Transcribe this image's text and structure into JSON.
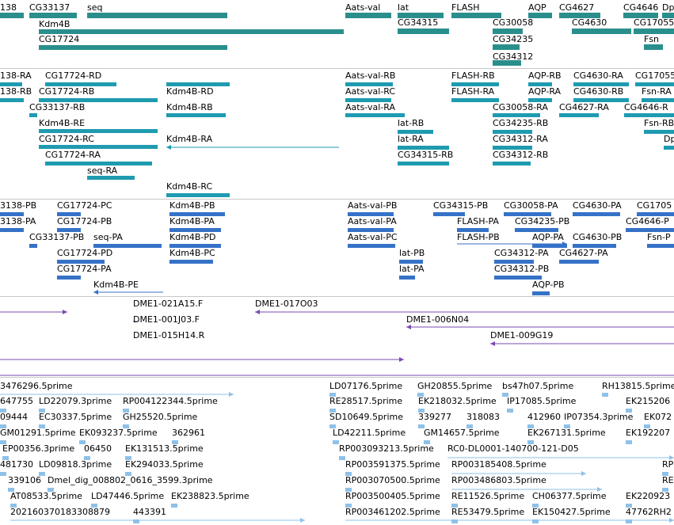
{
  "colors": {
    "gene": "#2a8f8c",
    "transcript_rna": "#1e9bb0",
    "transcript_protein": "#3572c8",
    "clone": "#7a4bb2",
    "est": "#8ec1e8",
    "separator": "#c8c8c8"
  },
  "tracks": {
    "genes": [
      {
        "name": "138"
      },
      {
        "name": "CG33137"
      },
      {
        "name": "seq"
      },
      {
        "name": "Kdm4B"
      },
      {
        "name": "CG17724"
      },
      {
        "name": "Aats-val"
      },
      {
        "name": "lat"
      },
      {
        "name": "FLASH"
      },
      {
        "name": "AQP"
      },
      {
        "name": "CG4627"
      },
      {
        "name": "CG4646"
      },
      {
        "name": "Dp"
      },
      {
        "name": "CG34315"
      },
      {
        "name": "CG30058"
      },
      {
        "name": "CG4630"
      },
      {
        "name": "CG17055"
      },
      {
        "name": "CG34235"
      },
      {
        "name": "Fsn"
      },
      {
        "name": "CG34312"
      }
    ],
    "transcripts": [
      {
        "name": "138-RA"
      },
      {
        "name": "CG17724-RD"
      },
      {
        "name": "138-RB"
      },
      {
        "name": "CG17724-RB"
      },
      {
        "name": "Kdm4B-RD"
      },
      {
        "name": "CG33137-RB"
      },
      {
        "name": "Kdm4B-RB"
      },
      {
        "name": "Kdm4B-RE"
      },
      {
        "name": "CG17724-RC"
      },
      {
        "name": "Kdm4B-RA"
      },
      {
        "name": "CG17724-RA"
      },
      {
        "name": "seq-RA"
      },
      {
        "name": "Kdm4B-RC"
      },
      {
        "name": "Aats-val-RB"
      },
      {
        "name": "Aats-val-RC"
      },
      {
        "name": "Aats-val-RA"
      },
      {
        "name": "lat-RB"
      },
      {
        "name": "lat-RA"
      },
      {
        "name": "CG34315-RB"
      },
      {
        "name": "FLASH-RB"
      },
      {
        "name": "FLASH-RA"
      },
      {
        "name": "CG30058-RA"
      },
      {
        "name": "CG34235-RB"
      },
      {
        "name": "CG34312-RA"
      },
      {
        "name": "CG34312-RB"
      },
      {
        "name": "AQP-RB"
      },
      {
        "name": "AQP-RA"
      },
      {
        "name": "CG4630-RA"
      },
      {
        "name": "CG4630-RB"
      },
      {
        "name": "CG4627-RA"
      },
      {
        "name": "CG17055"
      },
      {
        "name": "Fsn-RA"
      },
      {
        "name": "CG4646-R"
      },
      {
        "name": "Fsn-RB"
      },
      {
        "name": "Dp"
      }
    ],
    "proteins": [
      {
        "name": "3138-PB"
      },
      {
        "name": "CG17724-PC"
      },
      {
        "name": "Kdm4B-PB"
      },
      {
        "name": "3138-PA"
      },
      {
        "name": "CG17724-PB"
      },
      {
        "name": "Kdm4B-PA"
      },
      {
        "name": "CG33137-PB"
      },
      {
        "name": "seq-PA"
      },
      {
        "name": "Kdm4B-PD"
      },
      {
        "name": "CG17724-PD"
      },
      {
        "name": "Kdm4B-PC"
      },
      {
        "name": "CG17724-PA"
      },
      {
        "name": "Kdm4B-PE"
      },
      {
        "name": "Aats-val-PB"
      },
      {
        "name": "Aats-val-PA"
      },
      {
        "name": "Aats-val-PC"
      },
      {
        "name": "lat-PB"
      },
      {
        "name": "lat-PA"
      },
      {
        "name": "CG34315-PB"
      },
      {
        "name": "CG30058-PA"
      },
      {
        "name": "CG4630-PA"
      },
      {
        "name": "CG1705"
      },
      {
        "name": "FLASH-PA"
      },
      {
        "name": "CG34235-PB"
      },
      {
        "name": "CG4646-P"
      },
      {
        "name": "FLASH-PB"
      },
      {
        "name": "AQP-PA"
      },
      {
        "name": "CG4630-PB"
      },
      {
        "name": "Fsn-P"
      },
      {
        "name": "CG34312-PA"
      },
      {
        "name": "CG4627-PA"
      },
      {
        "name": "CG34312-PB"
      },
      {
        "name": "AQP-PB"
      }
    ],
    "clones": [
      {
        "name": "DME1-021A15.F"
      },
      {
        "name": "DME1-017O03"
      },
      {
        "name": "DME1-001J03.F"
      },
      {
        "name": "DME1-006N04"
      },
      {
        "name": "DME1-015H14.R"
      },
      {
        "name": "DME1-009G19"
      }
    ],
    "ests": [
      {
        "name": "3476296.5prime"
      },
      {
        "name": "LD07176.5prime"
      },
      {
        "name": "GH20855.5prime"
      },
      {
        "name": "bs47h07.5prime"
      },
      {
        "name": "RH13815.5prime"
      },
      {
        "name": "647755"
      },
      {
        "name": "LD22079.3prime"
      },
      {
        "name": "RP004122344.5prime"
      },
      {
        "name": "RE28517.5prime"
      },
      {
        "name": "EK218032.5prime"
      },
      {
        "name": "IP17085.5prime"
      },
      {
        "name": "EK215206"
      },
      {
        "name": "09444"
      },
      {
        "name": "EC30337.5prime"
      },
      {
        "name": "GH25520.5prime"
      },
      {
        "name": "SD10649.5prime"
      },
      {
        "name": "339277"
      },
      {
        "name": "318083"
      },
      {
        "name": "412960"
      },
      {
        "name": "IP07354.3prime"
      },
      {
        "name": "EK072"
      },
      {
        "name": "GM01291.5prime"
      },
      {
        "name": "EK093237.5prime"
      },
      {
        "name": "362961"
      },
      {
        "name": "LD42211.5prime"
      },
      {
        "name": "GM14657.5prime"
      },
      {
        "name": "EK267131.5prime"
      },
      {
        "name": "EK192207"
      },
      {
        "name": "EP00356.3prime"
      },
      {
        "name": "06450"
      },
      {
        "name": "EK131513.5prime"
      },
      {
        "name": "RP003093213.5prime"
      },
      {
        "name": "RC0-DL0001-140700-121-D05"
      },
      {
        "name": "481730"
      },
      {
        "name": "LD09818.3prime"
      },
      {
        "name": "EK294033.5prime"
      },
      {
        "name": "RP003591375.5prime"
      },
      {
        "name": "RP003185408.5prime"
      },
      {
        "name": "RP"
      },
      {
        "name": "339106"
      },
      {
        "name": "Dmel_dig_008802_0616_3599.3prime"
      },
      {
        "name": "RP003070500.5prime"
      },
      {
        "name": "RP003486803.5prime"
      },
      {
        "name": "RE"
      },
      {
        "name": "AT08533.5prime"
      },
      {
        "name": "LD47446.5prime"
      },
      {
        "name": "EK238823.5prime"
      },
      {
        "name": "RP003500405.5prime"
      },
      {
        "name": "RE11526.5prime"
      },
      {
        "name": "CH06377.5prime"
      },
      {
        "name": "EK220923"
      },
      {
        "name": "202160370183308879"
      },
      {
        "name": "443391"
      },
      {
        "name": "RP003461202.5prime"
      },
      {
        "name": "RE53479.5prime"
      },
      {
        "name": "EK150427.5prime"
      },
      {
        "name": "47762RH2"
      }
    ]
  }
}
